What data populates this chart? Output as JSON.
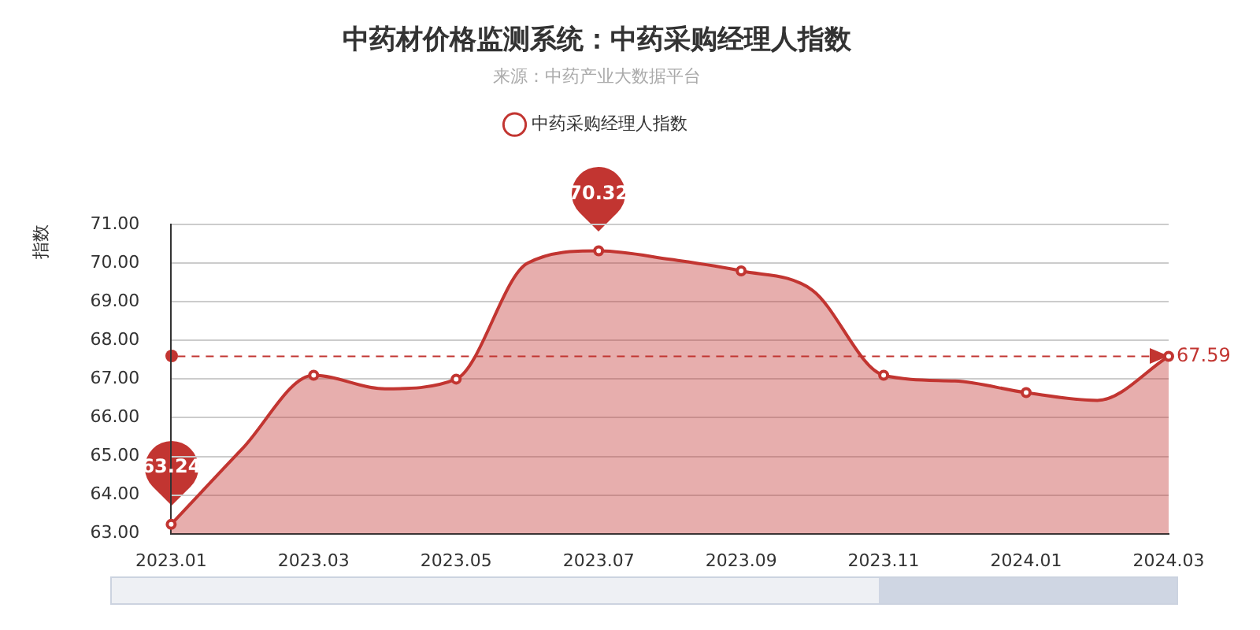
{
  "chart_data": {
    "type": "area",
    "title": "中药材价格监测系统：中药采购经理人指数",
    "subtitle": "来源：中药产业大数据平台",
    "ylabel": "指数",
    "categories": [
      "2023.01",
      null,
      "2023.03",
      null,
      "2023.05",
      null,
      "2023.07",
      null,
      "2023.09",
      null,
      "2023.11",
      null,
      "2024.01",
      null,
      "2024.03"
    ],
    "series": [
      {
        "name": "中药采购经理人指数",
        "color": "#c23531",
        "values": [
          63.24,
          65.2,
          67.1,
          66.75,
          67.0,
          70.0,
          70.32,
          70.1,
          69.8,
          69.3,
          67.1,
          66.95,
          66.65,
          66.45,
          67.59
        ]
      }
    ],
    "ylim": [
      63,
      71
    ],
    "yticks": [
      {
        "value": 63,
        "label": "63.00"
      },
      {
        "value": 64,
        "label": "64.00"
      },
      {
        "value": 65,
        "label": "65.00"
      },
      {
        "value": 66,
        "label": "66.00"
      },
      {
        "value": 67,
        "label": "67.00"
      },
      {
        "value": 68,
        "label": "68.00"
      },
      {
        "value": 69,
        "label": "69.00"
      },
      {
        "value": 70,
        "label": "70.00"
      },
      {
        "value": 71,
        "label": "71.00"
      }
    ],
    "grid": "y",
    "legend": "top",
    "marker": "circle",
    "ref_lines": [
      {
        "axis": "y",
        "value": 67.59,
        "label": "67.59",
        "line_style": "dashed"
      }
    ],
    "annotations": [
      {
        "text": "70.32",
        "x": "2023.07",
        "y": 70.32
      },
      {
        "text": "63.24",
        "x": "2023.01",
        "y": 63.24
      }
    ]
  }
}
